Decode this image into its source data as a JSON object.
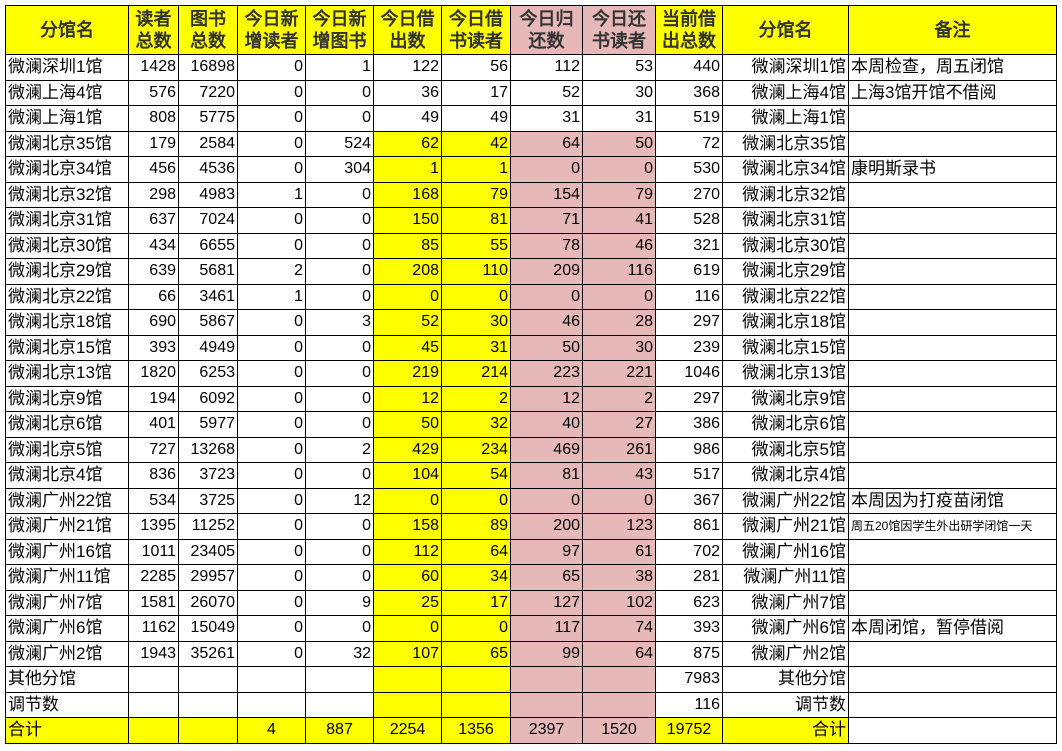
{
  "colors": {
    "yellow": "#ffff00",
    "pink": "#e6b8b7"
  },
  "headers": [
    "分馆名",
    "读者总数",
    "图书总数",
    "今日新增读者",
    "今日新增图书",
    "今日借出数",
    "今日借书读者",
    "今日归还数",
    "今日还书读者",
    "当前借出总数",
    "分馆名",
    "备注"
  ],
  "header_lines": [
    [
      "分馆名"
    ],
    [
      "读者",
      "总数"
    ],
    [
      "图书",
      "总数"
    ],
    [
      "今日新",
      "增读者"
    ],
    [
      "今日新",
      "增图书"
    ],
    [
      "今日借",
      "出数"
    ],
    [
      "今日借",
      "书读者"
    ],
    [
      "今日归",
      "还数"
    ],
    [
      "今日还",
      "书读者"
    ],
    [
      "当前借",
      "出总数"
    ],
    [
      "分馆名"
    ],
    [
      "备注"
    ]
  ],
  "rows": [
    [
      "微澜深圳1馆",
      "1428",
      "16898",
      "0",
      "1",
      "122",
      "56",
      "112",
      "53",
      "440",
      "微澜深圳1馆",
      "本周检查，周五闭馆"
    ],
    [
      "微澜上海4馆",
      "576",
      "7220",
      "0",
      "0",
      "36",
      "17",
      "52",
      "30",
      "368",
      "微澜上海4馆",
      "上海3馆开馆不借阅"
    ],
    [
      "微澜上海1馆",
      "808",
      "5775",
      "0",
      "0",
      "49",
      "49",
      "31",
      "31",
      "519",
      "微澜上海1馆",
      ""
    ],
    [
      "微澜北京35馆",
      "179",
      "2584",
      "0",
      "524",
      "62",
      "42",
      "64",
      "50",
      "72",
      "微澜北京35馆",
      ""
    ],
    [
      "微澜北京34馆",
      "456",
      "4536",
      "0",
      "304",
      "1",
      "1",
      "0",
      "0",
      "530",
      "微澜北京34馆",
      "康明斯录书"
    ],
    [
      "微澜北京32馆",
      "298",
      "4983",
      "1",
      "0",
      "168",
      "79",
      "154",
      "79",
      "270",
      "微澜北京32馆",
      ""
    ],
    [
      "微澜北京31馆",
      "637",
      "7024",
      "0",
      "0",
      "150",
      "81",
      "71",
      "41",
      "528",
      "微澜北京31馆",
      ""
    ],
    [
      "微澜北京30馆",
      "434",
      "6655",
      "0",
      "0",
      "85",
      "55",
      "78",
      "46",
      "321",
      "微澜北京30馆",
      ""
    ],
    [
      "微澜北京29馆",
      "639",
      "5681",
      "2",
      "0",
      "208",
      "110",
      "209",
      "116",
      "619",
      "微澜北京29馆",
      ""
    ],
    [
      "微澜北京22馆",
      "66",
      "3461",
      "1",
      "0",
      "0",
      "0",
      "0",
      "0",
      "116",
      "微澜北京22馆",
      ""
    ],
    [
      "微澜北京18馆",
      "690",
      "5867",
      "0",
      "3",
      "52",
      "30",
      "46",
      "28",
      "297",
      "微澜北京18馆",
      ""
    ],
    [
      "微澜北京15馆",
      "393",
      "4949",
      "0",
      "0",
      "45",
      "31",
      "50",
      "30",
      "239",
      "微澜北京15馆",
      ""
    ],
    [
      "微澜北京13馆",
      "1820",
      "6253",
      "0",
      "0",
      "219",
      "214",
      "223",
      "221",
      "1046",
      "微澜北京13馆",
      ""
    ],
    [
      "微澜北京9馆",
      "194",
      "6092",
      "0",
      "0",
      "12",
      "2",
      "12",
      "2",
      "297",
      "微澜北京9馆",
      ""
    ],
    [
      "微澜北京6馆",
      "401",
      "5977",
      "0",
      "0",
      "50",
      "32",
      "40",
      "27",
      "386",
      "微澜北京6馆",
      ""
    ],
    [
      "微澜北京5馆",
      "727",
      "13268",
      "0",
      "2",
      "429",
      "234",
      "469",
      "261",
      "986",
      "微澜北京5馆",
      ""
    ],
    [
      "微澜北京4馆",
      "836",
      "3723",
      "0",
      "0",
      "104",
      "54",
      "81",
      "43",
      "517",
      "微澜北京4馆",
      ""
    ],
    [
      "微澜广州22馆",
      "534",
      "3725",
      "0",
      "12",
      "0",
      "0",
      "0",
      "0",
      "367",
      "微澜广州22馆",
      "本周因为打疫苗闭馆"
    ],
    [
      "微澜广州21馆",
      "1395",
      "11252",
      "0",
      "0",
      "158",
      "89",
      "200",
      "123",
      "861",
      "微澜广州21馆",
      "周五20馆因学生外出研学闭馆一天"
    ],
    [
      "微澜广州16馆",
      "1011",
      "23405",
      "0",
      "0",
      "112",
      "64",
      "97",
      "61",
      "702",
      "微澜广州16馆",
      ""
    ],
    [
      "微澜广州11馆",
      "2285",
      "29957",
      "0",
      "0",
      "60",
      "34",
      "65",
      "38",
      "281",
      "微澜广州11馆",
      ""
    ],
    [
      "微澜广州7馆",
      "1581",
      "26070",
      "0",
      "9",
      "25",
      "17",
      "127",
      "102",
      "623",
      "微澜广州7馆",
      ""
    ],
    [
      "微澜广州6馆",
      "1162",
      "15049",
      "0",
      "0",
      "0",
      "0",
      "117",
      "74",
      "393",
      "微澜广州6馆",
      "本周闭馆，暂停借阅"
    ],
    [
      "微澜广州2馆",
      "1943",
      "35261",
      "0",
      "32",
      "107",
      "65",
      "99",
      "64",
      "875",
      "微澜广州2馆",
      ""
    ],
    [
      "其他分馆",
      "",
      "",
      "",
      "",
      "",
      "",
      "",
      "",
      "7983",
      "其他分馆",
      ""
    ],
    [
      "调节数",
      "",
      "",
      "",
      "",
      "",
      "",
      "",
      "",
      "116",
      "调节数",
      ""
    ],
    [
      "合计",
      "",
      "",
      "4",
      "887",
      "2254",
      "1356",
      "2397",
      "1520",
      "19752",
      "合计",
      ""
    ]
  ]
}
